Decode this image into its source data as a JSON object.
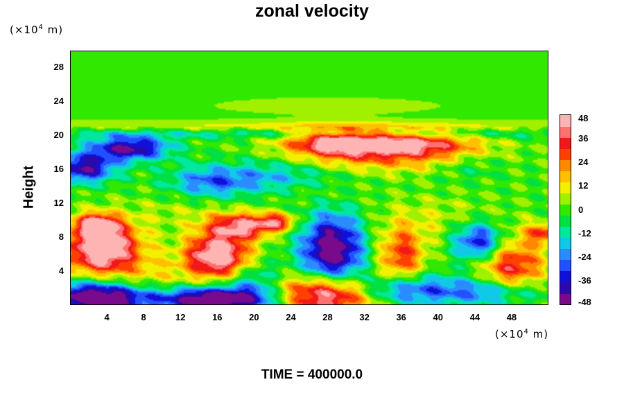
{
  "chart_data": {
    "type": "heatmap",
    "title": "zonal velocity",
    "ylabel": "Height",
    "xlabel": "",
    "y_unit_label": [
      "(×10",
      "4",
      " m)"
    ],
    "x_unit_label": [
      "(×10",
      "4",
      " m)"
    ],
    "footer": "TIME = 400000.0",
    "xlim": [
      0,
      52
    ],
    "ylim": [
      0,
      30
    ],
    "xticks": [
      4,
      8,
      12,
      16,
      20,
      24,
      28,
      32,
      36,
      40,
      44,
      48
    ],
    "yticks": [
      4,
      8,
      12,
      16,
      20,
      24,
      28
    ],
    "colorbar": {
      "min": -48,
      "max": 48,
      "ticks": [
        48,
        36,
        24,
        12,
        0,
        -12,
        -24,
        -36,
        -48
      ],
      "colors": [
        "#7a0a8c",
        "#2a0aa8",
        "#1010d8",
        "#2250ff",
        "#2a8cff",
        "#10c8e8",
        "#00e8a0",
        "#00e040",
        "#30e800",
        "#a0f000",
        "#f0f000",
        "#ffc000",
        "#ff8800",
        "#ff4000",
        "#f01818",
        "#ff7070",
        "#ffb4b4"
      ]
    },
    "field": {
      "background": 0,
      "features": [
        {
          "x": 26,
          "y": 21.1,
          "sx": 30,
          "sy": 0.5,
          "v": 10
        },
        {
          "x": 26,
          "y": 20.2,
          "sx": 30,
          "sy": 0.4,
          "v": -12
        },
        {
          "x": 28,
          "y": 23.5,
          "sx": 10,
          "sy": 0.8,
          "v": 6
        },
        {
          "x": 3.5,
          "y": 6.8,
          "sx": 2.8,
          "sy": 2.2,
          "v": 58
        },
        {
          "x": 3,
          "y": 9.5,
          "sx": 1.5,
          "sy": 0.8,
          "v": 40
        },
        {
          "x": 16,
          "y": 5.8,
          "sx": 2.4,
          "sy": 1.8,
          "v": 55
        },
        {
          "x": 18.5,
          "y": 9.3,
          "sx": 2.5,
          "sy": 1.1,
          "v": 40
        },
        {
          "x": 22.5,
          "y": 9.8,
          "sx": 1.5,
          "sy": 0.7,
          "v": 32
        },
        {
          "x": 29,
          "y": 19.2,
          "sx": 4,
          "sy": 1.1,
          "v": 42
        },
        {
          "x": 37,
          "y": 19.0,
          "sx": 5,
          "sy": 1.0,
          "v": 38
        },
        {
          "x": 33,
          "y": 17.2,
          "sx": 7,
          "sy": 1.2,
          "v": 18
        },
        {
          "x": 28,
          "y": 1.2,
          "sx": 3.8,
          "sy": 1.7,
          "v": 55
        },
        {
          "x": 36,
          "y": 5.8,
          "sx": 1.8,
          "sy": 2.4,
          "v": 30
        },
        {
          "x": 48,
          "y": 4.5,
          "sx": 2.5,
          "sy": 2.5,
          "v": 36
        },
        {
          "x": 51.5,
          "y": 8.5,
          "sx": 1.4,
          "sy": 0.8,
          "v": 28
        },
        {
          "x": 26,
          "y": 14,
          "sx": 4,
          "sy": 1.4,
          "v": 12
        },
        {
          "x": 42,
          "y": 17,
          "sx": 4,
          "sy": 1.3,
          "v": 8
        },
        {
          "x": 28.5,
          "y": 6.5,
          "sx": 2.4,
          "sy": 3,
          "v": -52
        },
        {
          "x": 6.5,
          "y": 18.5,
          "sx": 3,
          "sy": 1,
          "v": -44
        },
        {
          "x": 1.5,
          "y": 16.2,
          "sx": 2.4,
          "sy": 1.2,
          "v": -42
        },
        {
          "x": 3,
          "y": 0.9,
          "sx": 4,
          "sy": 1.3,
          "v": -58
        },
        {
          "x": 16,
          "y": 0.7,
          "sx": 4.5,
          "sy": 1.0,
          "v": -58
        },
        {
          "x": 44.5,
          "y": 7.5,
          "sx": 2,
          "sy": 1.6,
          "v": -40
        },
        {
          "x": 36,
          "y": 1.8,
          "sx": 4,
          "sy": 1.3,
          "v": -32
        },
        {
          "x": 46,
          "y": 1.6,
          "sx": 4,
          "sy": 1.2,
          "v": -28
        },
        {
          "x": 23,
          "y": 15,
          "sx": 5,
          "sy": 1.5,
          "v": -24
        },
        {
          "x": 15,
          "y": 14.5,
          "sx": 3,
          "sy": 1.3,
          "v": -22
        },
        {
          "x": 43,
          "y": 16.5,
          "sx": 3,
          "sy": 1.2,
          "v": -14
        },
        {
          "x": 20,
          "y": 3,
          "sx": 2,
          "sy": 1.5,
          "v": -18
        },
        {
          "x": 9,
          "y": 3,
          "sx": 3,
          "sy": 2,
          "v": 12
        },
        {
          "x": 40,
          "y": 10,
          "sx": 5,
          "sy": 2,
          "v": 8
        },
        {
          "x": 12,
          "y": 11,
          "sx": 4,
          "sy": 1.5,
          "v": 6
        }
      ]
    }
  }
}
